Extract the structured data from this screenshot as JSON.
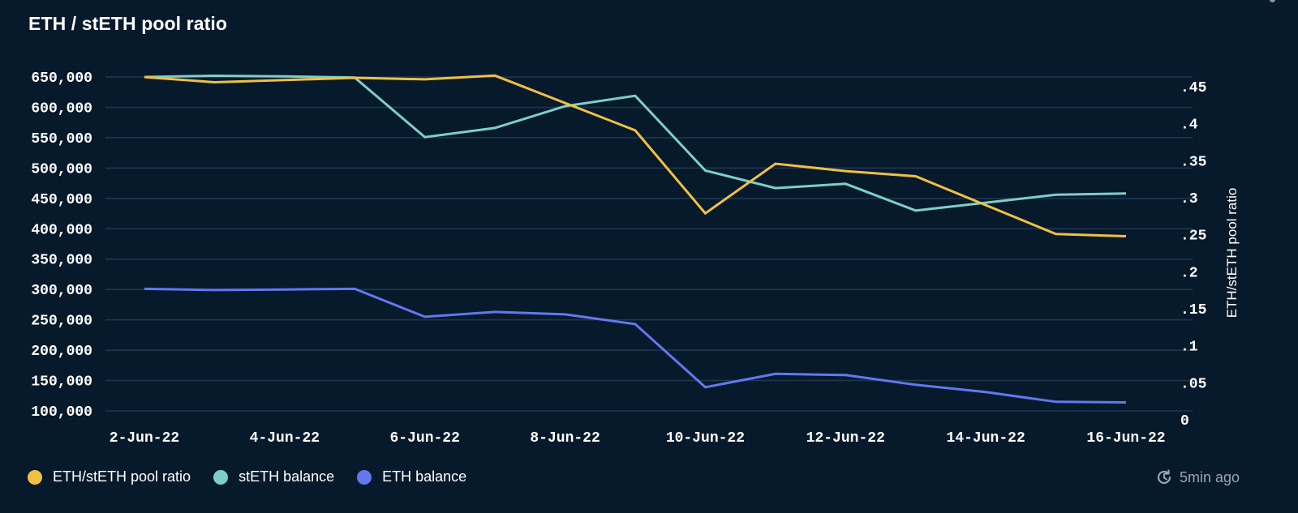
{
  "title": "ETH / stETH pool ratio",
  "updated": {
    "icon": "refresh-clock-icon",
    "text": "5min ago"
  },
  "colors": {
    "background": "#071a2c",
    "grid": "#1f3850",
    "ratio": "#f0c043",
    "steth": "#7ccfc8",
    "eth": "#6377f0"
  },
  "chart_data": {
    "type": "line",
    "title": "ETH / stETH pool ratio",
    "xlabel": "",
    "ylabel": "",
    "y2label": "ETH/stETH pool ratio",
    "x": [
      "2-Jun-22",
      "3-Jun-22",
      "4-Jun-22",
      "5-Jun-22",
      "6-Jun-22",
      "7-Jun-22",
      "8-Jun-22",
      "9-Jun-22",
      "10-Jun-22",
      "11-Jun-22",
      "12-Jun-22",
      "13-Jun-22",
      "14-Jun-22",
      "15-Jun-22",
      "16-Jun-22"
    ],
    "x_tick_labels": [
      "2-Jun-22",
      "4-Jun-22",
      "6-Jun-22",
      "8-Jun-22",
      "10-Jun-22",
      "12-Jun-22",
      "14-Jun-22",
      "16-Jun-22"
    ],
    "ylim": [
      100000,
      650000
    ],
    "y_tick_labels": [
      "650,000",
      "600,000",
      "550,000",
      "500,000",
      "450,000",
      "400,000",
      "350,000",
      "300,000",
      "250,000",
      "200,000",
      "150,000",
      "100,000"
    ],
    "y_ticks": [
      650000,
      600000,
      550000,
      500000,
      450000,
      400000,
      350000,
      300000,
      250000,
      200000,
      150000,
      100000
    ],
    "y2lim": [
      0,
      0.45
    ],
    "y2_tick_labels": [
      ".45",
      ".4",
      ".35",
      ".3",
      ".25",
      ".2",
      ".15",
      ".1",
      ".05",
      "0"
    ],
    "y2_ticks": [
      0.45,
      0.4,
      0.35,
      0.3,
      0.25,
      0.2,
      0.15,
      0.1,
      0.05,
      0
    ],
    "grid": true,
    "legend_position": "bottom-left",
    "series": [
      {
        "name": "ETH/stETH pool ratio",
        "axis": "right",
        "color": "#f0c043",
        "values": [
          0.463,
          0.456,
          0.459,
          0.462,
          0.46,
          0.465,
          0.428,
          0.391,
          0.279,
          0.346,
          0.336,
          0.329,
          0.29,
          0.251,
          0.248
        ]
      },
      {
        "name": "stETH balance",
        "axis": "left",
        "color": "#7ccfc8",
        "values": [
          650000,
          652000,
          651000,
          649000,
          551000,
          566000,
          602000,
          619000,
          496000,
          467000,
          474000,
          430000,
          443000,
          456000,
          458000
        ]
      },
      {
        "name": "ETH balance",
        "axis": "left",
        "color": "#6377f0",
        "values": [
          301000,
          299000,
          300000,
          301000,
          255000,
          263000,
          259000,
          243000,
          139000,
          161000,
          159000,
          143000,
          131000,
          115000,
          114000
        ]
      }
    ]
  }
}
